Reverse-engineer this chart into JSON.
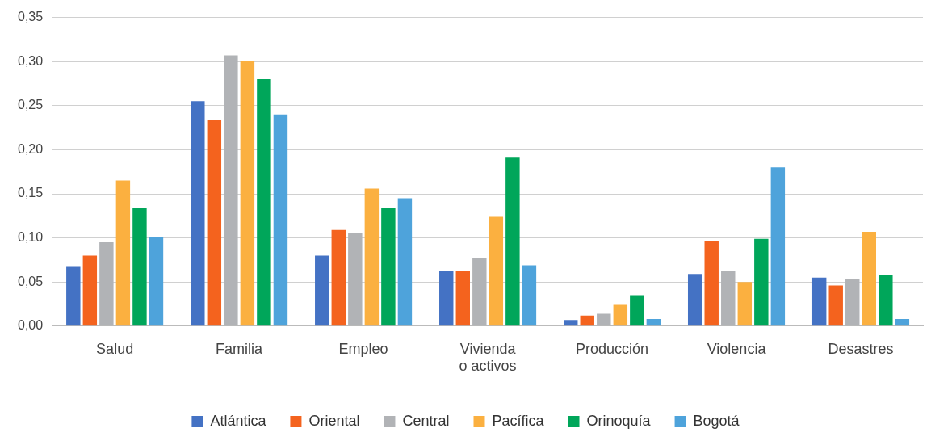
{
  "chart_data": {
    "type": "bar",
    "categories": [
      "Salud",
      "Familia",
      "Empleo",
      "Vivienda o activos",
      "Producción",
      "Violencia",
      "Desastres"
    ],
    "series": [
      {
        "name": "Atlántica",
        "color": "#4472c4",
        "values": [
          0.068,
          0.255,
          0.08,
          0.063,
          0.007,
          0.059,
          0.055
        ]
      },
      {
        "name": "Oriental",
        "color": "#f4631e",
        "values": [
          0.08,
          0.234,
          0.109,
          0.063,
          0.012,
          0.097,
          0.046
        ]
      },
      {
        "name": "Central",
        "color": "#b1b3b6",
        "values": [
          0.095,
          0.307,
          0.106,
          0.077,
          0.014,
          0.062,
          0.053
        ]
      },
      {
        "name": "Pacífica",
        "color": "#fbb040",
        "values": [
          0.165,
          0.301,
          0.156,
          0.124,
          0.024,
          0.05,
          0.107
        ]
      },
      {
        "name": "Orinoquía",
        "color": "#00a65a",
        "values": [
          0.134,
          0.28,
          0.134,
          0.191,
          0.035,
          0.099,
          0.058
        ]
      },
      {
        "name": "Bogotá",
        "color": "#4ea3db",
        "values": [
          0.101,
          0.24,
          0.145,
          0.069,
          0.008,
          0.18,
          0.008
        ]
      }
    ],
    "ylim": [
      0,
      0.35
    ],
    "yticks": [
      {
        "value": 0,
        "label": "0,00"
      },
      {
        "value": 0.05,
        "label": "0,05"
      },
      {
        "value": 0.1,
        "label": "0,10"
      },
      {
        "value": 0.15,
        "label": "0,15"
      },
      {
        "value": 0.2,
        "label": "0,20"
      },
      {
        "value": 0.25,
        "label": "0,25"
      },
      {
        "value": 0.3,
        "label": "0,30"
      },
      {
        "value": 0.35,
        "label": "0,35"
      }
    ],
    "grid": "y",
    "legend": "bottom"
  }
}
